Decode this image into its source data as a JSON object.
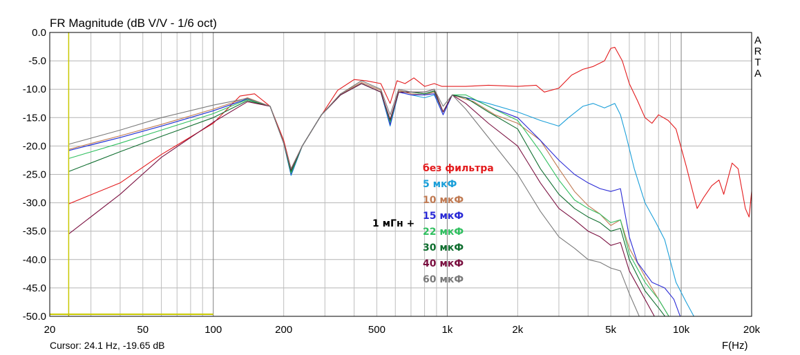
{
  "chart_data": {
    "type": "line",
    "title": "FR Magnitude (dB V/V - 1/6 oct)",
    "xlabel": "F(Hz)",
    "ylabel": "",
    "x_scale": "log",
    "xlim": [
      20,
      20000
    ],
    "ylim": [
      -50,
      0
    ],
    "y_ticks": [
      0,
      -5,
      -10,
      -15,
      -20,
      -25,
      -30,
      -35,
      -40,
      -45,
      -50
    ],
    "y_tick_labels": [
      "0.0",
      "-5.0",
      "-10.0",
      "-15.0",
      "-20.0",
      "-25.0",
      "-30.0",
      "-35.0",
      "-40.0",
      "-45.0",
      "-50.0"
    ],
    "x_ticks": [
      20,
      50,
      100,
      200,
      500,
      1000,
      2000,
      5000,
      10000,
      20000
    ],
    "x_tick_labels": [
      "20",
      "50",
      "100",
      "200",
      "500",
      "1k",
      "2k",
      "5k",
      "10k",
      "20k"
    ],
    "brand": [
      "A",
      "R",
      "T",
      "A"
    ],
    "cursor_readout": "Cursor: 24.1 Hz, -19.65 dB",
    "cursor_freq": 24.1,
    "annotation": "1 мГн +",
    "series": [
      {
        "name": "без фильтра",
        "color": "#e31a1c",
        "points": [
          [
            24.1,
            -30.2
          ],
          [
            40,
            -26.5
          ],
          [
            60,
            -21.5
          ],
          [
            100,
            -16
          ],
          [
            130,
            -11.2
          ],
          [
            150,
            -10.8
          ],
          [
            175,
            -13
          ],
          [
            200,
            -19
          ],
          [
            215,
            -24
          ],
          [
            240,
            -20
          ],
          [
            280,
            -15.5
          ],
          [
            340,
            -10.2
          ],
          [
            400,
            -8.3
          ],
          [
            450,
            -8.5
          ],
          [
            520,
            -9
          ],
          [
            570,
            -12.5
          ],
          [
            610,
            -8.5
          ],
          [
            660,
            -9
          ],
          [
            720,
            -8
          ],
          [
            800,
            -9.5
          ],
          [
            880,
            -9
          ],
          [
            950,
            -9.5
          ],
          [
            1000,
            -9.5
          ],
          [
            1200,
            -9.5
          ],
          [
            1500,
            -9.3
          ],
          [
            2000,
            -9.5
          ],
          [
            2400,
            -9.3
          ],
          [
            2600,
            -10.5
          ],
          [
            3000,
            -9.8
          ],
          [
            3400,
            -7.5
          ],
          [
            3800,
            -6.5
          ],
          [
            4200,
            -6
          ],
          [
            4700,
            -5
          ],
          [
            5000,
            -2.8
          ],
          [
            5200,
            -2.6
          ],
          [
            5600,
            -5
          ],
          [
            6000,
            -9
          ],
          [
            6500,
            -12
          ],
          [
            7000,
            -15
          ],
          [
            7500,
            -16
          ],
          [
            8000,
            -14.5
          ],
          [
            8800,
            -15.5
          ],
          [
            9500,
            -17
          ],
          [
            10500,
            -23.5
          ],
          [
            11200,
            -28
          ],
          [
            11700,
            -31
          ],
          [
            12500,
            -29
          ],
          [
            13500,
            -27
          ],
          [
            14500,
            -26
          ],
          [
            15200,
            -28.5
          ],
          [
            16500,
            -23
          ],
          [
            17500,
            -24
          ],
          [
            18800,
            -31
          ],
          [
            19500,
            -32.5
          ],
          [
            20000,
            -28
          ]
        ]
      },
      {
        "name": "5 мкФ",
        "color": "#1a9fd9",
        "points": [
          [
            24.1,
            -20.8
          ],
          [
            40,
            -18.5
          ],
          [
            60,
            -16.5
          ],
          [
            100,
            -13.8
          ],
          [
            140,
            -11.7
          ],
          [
            175,
            -13
          ],
          [
            200,
            -19.5
          ],
          [
            215,
            -25.2
          ],
          [
            240,
            -20
          ],
          [
            290,
            -14.5
          ],
          [
            350,
            -11
          ],
          [
            430,
            -9
          ],
          [
            520,
            -10.5
          ],
          [
            570,
            -16.5
          ],
          [
            620,
            -10.5
          ],
          [
            700,
            -11
          ],
          [
            800,
            -11.5
          ],
          [
            880,
            -11
          ],
          [
            960,
            -14.5
          ],
          [
            1050,
            -11
          ],
          [
            1200,
            -11.5
          ],
          [
            1500,
            -12.5
          ],
          [
            2000,
            -14
          ],
          [
            2500,
            -15.5
          ],
          [
            3000,
            -16.5
          ],
          [
            3300,
            -15
          ],
          [
            3800,
            -13
          ],
          [
            4200,
            -12.5
          ],
          [
            4700,
            -13.3
          ],
          [
            5200,
            -12.5
          ],
          [
            5500,
            -14.5
          ],
          [
            5800,
            -18
          ],
          [
            6300,
            -24
          ],
          [
            7000,
            -30
          ],
          [
            7800,
            -33.5
          ],
          [
            8500,
            -36.5
          ],
          [
            9500,
            -44
          ],
          [
            10500,
            -47.5
          ],
          [
            11500,
            -50.5
          ]
        ]
      },
      {
        "name": "10 мкФ",
        "color": "#c07a52",
        "points": [
          [
            24.1,
            -20.6
          ],
          [
            40,
            -18.2
          ],
          [
            60,
            -16.2
          ],
          [
            100,
            -13.5
          ],
          [
            140,
            -11.5
          ],
          [
            175,
            -13
          ],
          [
            200,
            -19.5
          ],
          [
            215,
            -24.3
          ],
          [
            240,
            -20
          ],
          [
            290,
            -14.5
          ],
          [
            350,
            -10.8
          ],
          [
            430,
            -8.8
          ],
          [
            520,
            -10.2
          ],
          [
            570,
            -16
          ],
          [
            620,
            -10.2
          ],
          [
            700,
            -10.8
          ],
          [
            800,
            -11
          ],
          [
            880,
            -10.5
          ],
          [
            960,
            -14
          ],
          [
            1050,
            -11
          ],
          [
            1300,
            -12.2
          ],
          [
            1600,
            -14.5
          ],
          [
            2000,
            -16
          ],
          [
            2500,
            -19
          ],
          [
            3000,
            -24
          ],
          [
            3500,
            -28
          ],
          [
            4000,
            -30.5
          ],
          [
            4500,
            -32
          ],
          [
            5000,
            -34
          ],
          [
            5500,
            -33
          ],
          [
            6000,
            -38
          ],
          [
            7000,
            -43
          ],
          [
            8000,
            -47
          ],
          [
            9000,
            -50.5
          ]
        ]
      },
      {
        "name": "15 мкФ",
        "color": "#2a2ad6",
        "points": [
          [
            24.1,
            -20.8
          ],
          [
            40,
            -18.5
          ],
          [
            60,
            -16.5
          ],
          [
            100,
            -13.8
          ],
          [
            140,
            -11.7
          ],
          [
            175,
            -13
          ],
          [
            200,
            -19.5
          ],
          [
            215,
            -25
          ],
          [
            240,
            -20
          ],
          [
            290,
            -14.5
          ],
          [
            350,
            -11
          ],
          [
            430,
            -9
          ],
          [
            520,
            -10.5
          ],
          [
            570,
            -16.3
          ],
          [
            620,
            -10.5
          ],
          [
            700,
            -11
          ],
          [
            800,
            -11
          ],
          [
            880,
            -10.8
          ],
          [
            960,
            -14.5
          ],
          [
            1050,
            -11
          ],
          [
            1300,
            -11.8
          ],
          [
            1600,
            -13.5
          ],
          [
            2000,
            -15
          ],
          [
            2500,
            -19
          ],
          [
            3000,
            -22.5
          ],
          [
            3500,
            -25
          ],
          [
            4000,
            -26.5
          ],
          [
            4500,
            -27.5
          ],
          [
            5000,
            -28
          ],
          [
            5500,
            -27.5
          ],
          [
            6000,
            -36
          ],
          [
            6500,
            -40.5
          ],
          [
            7500,
            -44
          ],
          [
            8500,
            -45
          ],
          [
            9300,
            -47
          ],
          [
            10000,
            -50.5
          ]
        ]
      },
      {
        "name": "22 мкФ",
        "color": "#2fbf5f",
        "points": [
          [
            24.1,
            -22.2
          ],
          [
            40,
            -19.5
          ],
          [
            60,
            -17.2
          ],
          [
            100,
            -14.3
          ],
          [
            140,
            -11.8
          ],
          [
            175,
            -13
          ],
          [
            200,
            -19.5
          ],
          [
            215,
            -24.8
          ],
          [
            240,
            -20
          ],
          [
            290,
            -14.5
          ],
          [
            350,
            -11
          ],
          [
            430,
            -9
          ],
          [
            520,
            -10.5
          ],
          [
            570,
            -15.8
          ],
          [
            620,
            -10.5
          ],
          [
            700,
            -10.5
          ],
          [
            800,
            -10.8
          ],
          [
            880,
            -10.3
          ],
          [
            960,
            -14
          ],
          [
            1050,
            -11
          ],
          [
            1200,
            -11
          ],
          [
            1500,
            -13
          ],
          [
            2000,
            -15.5
          ],
          [
            2500,
            -21
          ],
          [
            3000,
            -26
          ],
          [
            3500,
            -29.5
          ],
          [
            4000,
            -31
          ],
          [
            4500,
            -32
          ],
          [
            5000,
            -33.5
          ],
          [
            5500,
            -33
          ],
          [
            6000,
            -39
          ],
          [
            7000,
            -44
          ],
          [
            8000,
            -47
          ],
          [
            9000,
            -50.5
          ]
        ]
      },
      {
        "name": "30 мкФ",
        "color": "#0f6e2f",
        "points": [
          [
            24.1,
            -24.5
          ],
          [
            40,
            -21
          ],
          [
            60,
            -18.3
          ],
          [
            100,
            -15
          ],
          [
            140,
            -12
          ],
          [
            175,
            -13
          ],
          [
            200,
            -19.5
          ],
          [
            215,
            -24.5
          ],
          [
            240,
            -20
          ],
          [
            290,
            -14.5
          ],
          [
            350,
            -11
          ],
          [
            430,
            -9
          ],
          [
            520,
            -10.5
          ],
          [
            570,
            -15.5
          ],
          [
            620,
            -10.5
          ],
          [
            700,
            -10.5
          ],
          [
            800,
            -10.8
          ],
          [
            880,
            -10.3
          ],
          [
            960,
            -14
          ],
          [
            1050,
            -11
          ],
          [
            1200,
            -11.5
          ],
          [
            1500,
            -14
          ],
          [
            2000,
            -17
          ],
          [
            2500,
            -24
          ],
          [
            3000,
            -28.5
          ],
          [
            3500,
            -31
          ],
          [
            4000,
            -32.5
          ],
          [
            4500,
            -33.5
          ],
          [
            5000,
            -35
          ],
          [
            5500,
            -34.5
          ],
          [
            6000,
            -40
          ],
          [
            7000,
            -45.5
          ],
          [
            8000,
            -48.5
          ],
          [
            8700,
            -50.5
          ]
        ]
      },
      {
        "name": "40 мкФ",
        "color": "#7a1040",
        "points": [
          [
            24.1,
            -35.5
          ],
          [
            40,
            -28.5
          ],
          [
            60,
            -22
          ],
          [
            100,
            -15.8
          ],
          [
            140,
            -12.2
          ],
          [
            175,
            -13
          ],
          [
            200,
            -19.5
          ],
          [
            215,
            -24.2
          ],
          [
            240,
            -20
          ],
          [
            290,
            -14.5
          ],
          [
            350,
            -11
          ],
          [
            430,
            -9
          ],
          [
            520,
            -10.5
          ],
          [
            570,
            -15.3
          ],
          [
            620,
            -10.5
          ],
          [
            700,
            -10.5
          ],
          [
            800,
            -10.5
          ],
          [
            880,
            -10
          ],
          [
            960,
            -14
          ],
          [
            1050,
            -11
          ],
          [
            1200,
            -12.5
          ],
          [
            1500,
            -16
          ],
          [
            2000,
            -20
          ],
          [
            2500,
            -26.5
          ],
          [
            3000,
            -31
          ],
          [
            3500,
            -33
          ],
          [
            4000,
            -35
          ],
          [
            4500,
            -36
          ],
          [
            5000,
            -37.5
          ],
          [
            5500,
            -37
          ],
          [
            6000,
            -42
          ],
          [
            7000,
            -47
          ],
          [
            7800,
            -50.5
          ]
        ]
      },
      {
        "name": "60 мкФ",
        "color": "#7a7a7a",
        "points": [
          [
            24.1,
            -19.7
          ],
          [
            40,
            -17.2
          ],
          [
            60,
            -15
          ],
          [
            100,
            -12.8
          ],
          [
            140,
            -11.6
          ],
          [
            175,
            -13
          ],
          [
            200,
            -19.5
          ],
          [
            215,
            -24
          ],
          [
            240,
            -20
          ],
          [
            290,
            -14.5
          ],
          [
            350,
            -10.8
          ],
          [
            430,
            -8.5
          ],
          [
            520,
            -10
          ],
          [
            570,
            -14.5
          ],
          [
            620,
            -10
          ],
          [
            700,
            -10.5
          ],
          [
            800,
            -10.5
          ],
          [
            880,
            -10
          ],
          [
            960,
            -13
          ],
          [
            1050,
            -11
          ],
          [
            1200,
            -13.5
          ],
          [
            1500,
            -18.5
          ],
          [
            2000,
            -25
          ],
          [
            2500,
            -31.5
          ],
          [
            3000,
            -36
          ],
          [
            3500,
            -38
          ],
          [
            4000,
            -40
          ],
          [
            4500,
            -40.5
          ],
          [
            5000,
            -41.5
          ],
          [
            5500,
            -42
          ],
          [
            6000,
            -46
          ],
          [
            6700,
            -50.5
          ]
        ]
      }
    ]
  }
}
